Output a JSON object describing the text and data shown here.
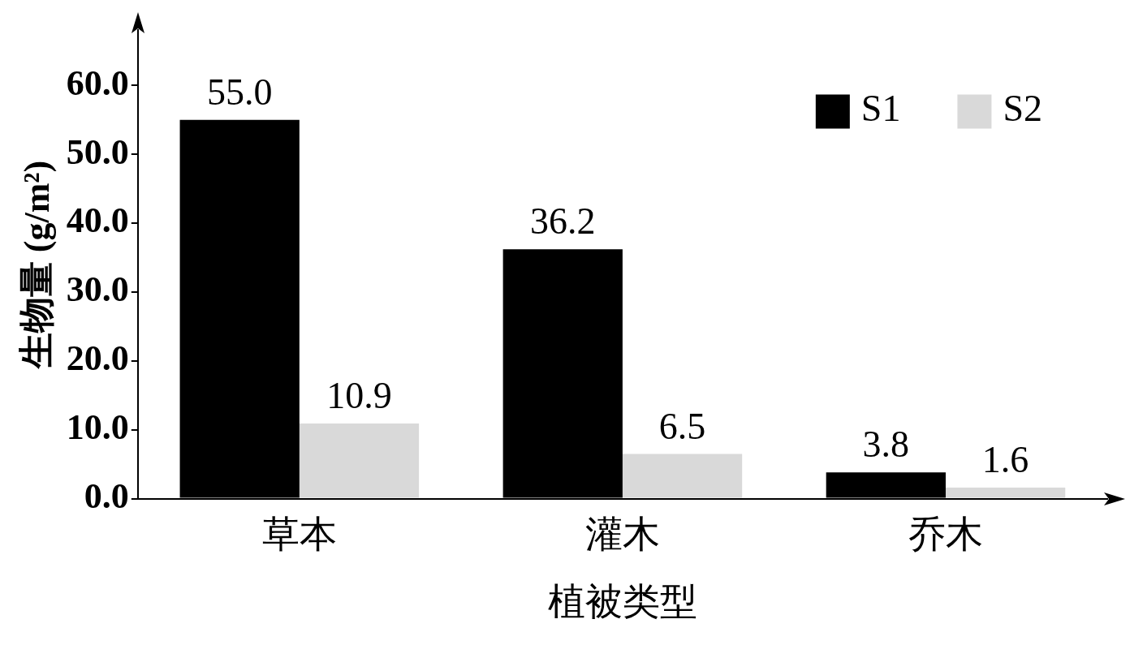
{
  "chart_data": {
    "type": "bar",
    "xlabel": "植被类型",
    "ylabel": "生物量 (g/m²)",
    "categories": [
      "草本",
      "灌木",
      "乔木"
    ],
    "series": [
      {
        "name": "S1",
        "color": "#000000",
        "values": [
          55.0,
          36.2,
          3.8
        ]
      },
      {
        "name": "S2",
        "color": "#d9d9d9",
        "values": [
          10.9,
          6.5,
          1.6
        ]
      }
    ],
    "ylim": [
      0,
      68
    ],
    "yticks": [
      {
        "value": 0,
        "label": "0.0"
      },
      {
        "value": 10,
        "label": "10.0"
      },
      {
        "value": 20,
        "label": "20.0"
      },
      {
        "value": 30,
        "label": "30.0"
      },
      {
        "value": 40,
        "label": "40.0"
      },
      {
        "value": 50,
        "label": "50.0"
      },
      {
        "value": 60,
        "label": "60.0"
      }
    ],
    "value_labels": [
      [
        "55.0",
        "36.2",
        "3.8"
      ],
      [
        "10.9",
        "6.5",
        "1.6"
      ]
    ],
    "legend": "top right",
    "grid": false
  }
}
